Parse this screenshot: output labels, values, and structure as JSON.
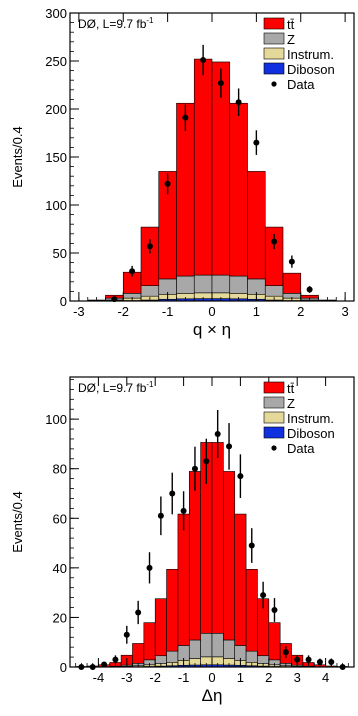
{
  "chart_data": [
    {
      "type": "bar",
      "stacked": true,
      "histogram": true,
      "label": "DØ, L=9.7 fb",
      "label_sup": "-1",
      "xlabel": "q × η",
      "ylabel": "Events/0.4",
      "xlim": [
        -3.2,
        3.2
      ],
      "ylim": [
        0,
        300
      ],
      "xticks": [
        -3,
        -2,
        -1,
        0,
        1,
        2,
        3
      ],
      "xtick_labels": [
        "-3",
        "-2",
        "-1",
        "0",
        "1",
        "2",
        "3"
      ],
      "yticks": [
        0,
        50,
        100,
        150,
        200,
        250,
        300
      ],
      "ytick_labels": [
        "0",
        "50",
        "100",
        "150",
        "200",
        "250",
        "300"
      ],
      "bin_edges": [
        -2.8,
        -2.4,
        -2.0,
        -1.6,
        -1.2,
        -0.8,
        -0.4,
        0.0,
        0.4,
        0.8,
        1.2,
        1.6,
        2.0,
        2.4,
        2.8
      ],
      "series": [
        {
          "name": "Diboson",
          "color": "#1030e0",
          "values": [
            0.1,
            0.2,
            0.5,
            1.0,
            1.8,
            2.3,
            2.5,
            2.5,
            2.3,
            1.8,
            1.0,
            0.5,
            0.2,
            0.1
          ]
        },
        {
          "name": "Instrum.",
          "color": "#e5d99a",
          "values": [
            0.2,
            0.8,
            2.5,
            4.0,
            5.2,
            5.7,
            6.0,
            6.0,
            5.7,
            5.2,
            4.0,
            2.5,
            0.8,
            0.2
          ]
        },
        {
          "name": "Z",
          "color": "#a8a8a8",
          "values": [
            0.5,
            2.0,
            5.0,
            11.0,
            16.0,
            18.0,
            18.5,
            18.5,
            18.0,
            16.0,
            11.0,
            5.0,
            2.0,
            0.5
          ]
        },
        {
          "name": "tt̄",
          "color": "#ff0000",
          "values": [
            0.2,
            3.0,
            22.0,
            61.0,
            112.0,
            180.0,
            225.0,
            222.0,
            180.0,
            112.0,
            61.0,
            21.0,
            3.0,
            0.2
          ]
        }
      ],
      "data_points": {
        "name": "Data",
        "x": [
          -2.2,
          -1.8,
          -1.4,
          -1.0,
          -0.6,
          -0.2,
          0.2,
          0.6,
          1.0,
          1.4,
          1.8,
          2.2
        ],
        "y": [
          2,
          31,
          57,
          122,
          191,
          251,
          227,
          207,
          165,
          62,
          41,
          12
        ],
        "err": [
          1.4,
          5.6,
          7.5,
          11.0,
          13.8,
          15.8,
          15.1,
          14.4,
          12.8,
          7.9,
          6.4,
          3.5
        ]
      },
      "legend_labels": [
        "tt̄",
        "Z",
        "Instrum.",
        "Diboson",
        "Data"
      ],
      "legend_position": "top-right",
      "grid": false
    },
    {
      "type": "bar",
      "stacked": true,
      "histogram": true,
      "label": "DØ, L=9.7 fb",
      "label_sup": "-1",
      "xlabel": "Δη",
      "ylabel": "Events/0.4",
      "xlim": [
        -5,
        5
      ],
      "ylim": [
        0,
        117
      ],
      "xticks": [
        -4,
        -3,
        -2,
        -1,
        0,
        1,
        2,
        3,
        4
      ],
      "xtick_labels": [
        "-4",
        "-3",
        "-2",
        "-1",
        "0",
        "1",
        "2",
        "3",
        "4"
      ],
      "yticks": [
        0,
        20,
        40,
        60,
        80,
        100
      ],
      "ytick_labels": [
        "0",
        "20",
        "40",
        "60",
        "80",
        "100"
      ],
      "bin_edges": [
        -4.8,
        -4.4,
        -4.0,
        -3.6,
        -3.2,
        -2.8,
        -2.4,
        -2.0,
        -1.6,
        -1.2,
        -0.8,
        -0.4,
        0.0,
        0.4,
        0.8,
        1.2,
        1.6,
        2.0,
        2.4,
        2.8,
        3.2,
        3.6,
        4.0,
        4.4,
        4.8
      ],
      "series": [
        {
          "name": "Diboson",
          "color": "#1030e0",
          "values": [
            0,
            0,
            0,
            0.02,
            0.05,
            0.1,
            0.2,
            0.35,
            0.5,
            0.7,
            0.8,
            0.9,
            0.9,
            0.8,
            0.7,
            0.5,
            0.35,
            0.2,
            0.1,
            0.05,
            0.02,
            0,
            0,
            0
          ]
        },
        {
          "name": "Instrum.",
          "color": "#e5d99a",
          "values": [
            0,
            0,
            0.05,
            0.1,
            0.2,
            0.4,
            0.7,
            1.0,
            1.4,
            2.0,
            2.6,
            3.2,
            3.2,
            2.6,
            2.0,
            1.4,
            1.0,
            0.7,
            0.4,
            0.2,
            0.1,
            0.05,
            0,
            0
          ]
        },
        {
          "name": "Z",
          "color": "#a8a8a8",
          "values": [
            0,
            0,
            0.05,
            0.2,
            0.5,
            1.0,
            2.0,
            3.2,
            4.5,
            6.0,
            7.5,
            9.5,
            9.5,
            7.5,
            6.0,
            4.5,
            3.2,
            2.0,
            1.0,
            0.5,
            0.2,
            0.05,
            0,
            0
          ]
        },
        {
          "name": "tt̄",
          "color": "#ff0000",
          "values": [
            0.2,
            0.4,
            0.8,
            1.5,
            4.0,
            8.0,
            15.0,
            23.0,
            33.0,
            53.0,
            68.0,
            77.0,
            77.0,
            68.0,
            53.0,
            33.0,
            23.0,
            15.0,
            8.0,
            4.0,
            1.5,
            0.8,
            0.4,
            0.2
          ]
        }
      ],
      "data_points": {
        "name": "Data",
        "x": [
          -4.6,
          -4.2,
          -3.8,
          -3.4,
          -3.0,
          -2.6,
          -2.2,
          -1.8,
          -1.4,
          -1.0,
          -0.6,
          -0.2,
          0.2,
          0.6,
          1.0,
          1.4,
          1.8,
          2.2,
          2.6,
          3.0,
          3.4,
          3.8,
          4.2,
          4.6
        ],
        "y": [
          0,
          0,
          1,
          3,
          13,
          22,
          40,
          61,
          70,
          63,
          80,
          83,
          94,
          89,
          77,
          49,
          29,
          23,
          6,
          3,
          3,
          2,
          2,
          0
        ],
        "err": [
          0,
          0,
          1,
          1.7,
          3.6,
          4.7,
          6.3,
          7.8,
          8.4,
          7.9,
          8.9,
          9.1,
          9.7,
          9.4,
          8.8,
          7.0,
          5.4,
          4.8,
          2.4,
          1.7,
          1.7,
          1.4,
          1.4,
          0
        ]
      },
      "legend_labels": [
        "tt̄",
        "Z",
        "Instrum.",
        "Diboson",
        "Data"
      ],
      "legend_position": "top-right",
      "grid": false
    }
  ]
}
